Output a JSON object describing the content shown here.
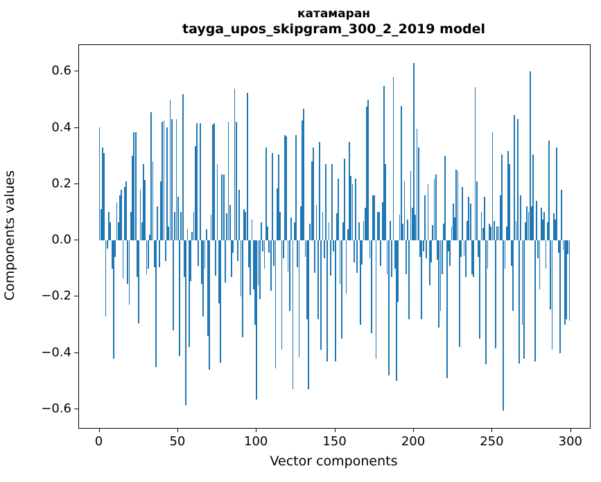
{
  "chart_data": {
    "type": "bar",
    "title_line1": "катамаран",
    "title_line2": "tayga_upos_skipgram_300_2_2019 model",
    "xlabel": "Vector components",
    "ylabel": "Components values",
    "bar_color": "#1f77b4",
    "background_color": "#ffffff",
    "spine_color": "#000000",
    "grid": false,
    "legend": false,
    "bar_width_data_units": 0.8,
    "xlim": [
      -13,
      312
    ],
    "ylim": [
      -0.667,
      0.694
    ],
    "x_ticks": [
      0,
      50,
      100,
      150,
      200,
      250,
      300
    ],
    "y_ticks": [
      {
        "value": 0.6,
        "label": "0.6"
      },
      {
        "value": 0.4,
        "label": "0.4"
      },
      {
        "value": 0.2,
        "label": "0.2"
      },
      {
        "value": 0.0,
        "label": "0.0"
      },
      {
        "value": -0.2,
        "label": "−0.2"
      },
      {
        "value": -0.4,
        "label": "−0.4"
      },
      {
        "value": -0.6,
        "label": "−0.6"
      }
    ],
    "x_start": 0,
    "values": [
      0.4,
      0.11,
      0.33,
      0.31,
      -0.27,
      -0.03,
      0.1,
      0.065,
      -0.1,
      -0.42,
      -0.06,
      0.135,
      0.065,
      0.16,
      0.18,
      -0.135,
      0.19,
      0.21,
      -0.155,
      -0.23,
      0.1,
      0.3,
      0.385,
      0.385,
      -0.13,
      -0.295,
      0.18,
      0.065,
      0.27,
      0.215,
      -0.12,
      -0.1,
      0.02,
      0.455,
      0.28,
      -0.095,
      -0.45,
      0.12,
      -0.095,
      0.21,
      0.42,
      0.425,
      -0.075,
      0.4,
      0.05,
      0.5,
      0.43,
      -0.32,
      0.1,
      0.43,
      0.155,
      -0.41,
      0.1,
      0.52,
      -0.13,
      -0.585,
      0.04,
      -0.38,
      -0.145,
      0.03,
      0.1,
      0.335,
      0.415,
      -0.09,
      0.415,
      -0.155,
      -0.27,
      -0.1,
      0.04,
      -0.34,
      -0.46,
      0.09,
      0.41,
      0.415,
      -0.125,
      0.27,
      -0.225,
      -0.435,
      0.235,
      0.235,
      -0.15,
      0.095,
      0.42,
      0.125,
      -0.13,
      -0.045,
      0.54,
      0.42,
      -0.075,
      0.18,
      -0.2,
      -0.345,
      0.11,
      0.1,
      0.525,
      -0.095,
      -0.195,
      0.075,
      -0.175,
      -0.3,
      -0.565,
      -0.16,
      -0.21,
      0.065,
      -0.04,
      -0.1,
      0.33,
      0.05,
      -0.045,
      -0.18,
      0.31,
      -0.09,
      -0.455,
      0.185,
      0.305,
      0.1,
      -0.39,
      -0.065,
      0.375,
      0.37,
      -0.11,
      -0.25,
      0.08,
      -0.53,
      0.065,
      0.375,
      -0.095,
      -0.415,
      0.12,
      0.425,
      0.468,
      -0.06,
      -0.28,
      -0.53,
      0.06,
      0.28,
      0.33,
      -0.115,
      0.125,
      -0.28,
      0.35,
      -0.39,
      0.1,
      -0.065,
      0.27,
      -0.43,
      0.065,
      -0.125,
      0.27,
      -0.04,
      -0.43,
      0.095,
      0.22,
      -0.155,
      -0.35,
      0.065,
      0.29,
      -0.19,
      0.04,
      0.35,
      0.23,
      0.2,
      -0.08,
      0.22,
      -0.115,
      0.065,
      -0.3,
      -0.085,
      0.07,
      0.115,
      0.475,
      0.5,
      -0.065,
      -0.33,
      0.16,
      0.16,
      -0.42,
      0.1,
      0.1,
      -0.09,
      0.135,
      0.55,
      0.27,
      -0.12,
      -0.48,
      0.07,
      -0.13,
      0.58,
      -0.1,
      -0.5,
      -0.22,
      0.09,
      0.477,
      0.06,
      0.21,
      -0.12,
      0.075,
      -0.28,
      0.245,
      0.115,
      0.63,
      0.09,
      0.395,
      0.33,
      -0.06,
      -0.28,
      -0.04,
      0.16,
      -0.065,
      0.2,
      -0.16,
      -0.08,
      0.055,
      0.22,
      0.235,
      -0.07,
      -0.31,
      -0.25,
      -0.12,
      0.06,
      0.3,
      -0.49,
      -0.04,
      -0.09,
      0.05,
      0.13,
      0.08,
      0.25,
      0.245,
      -0.38,
      -0.06,
      0.19,
      -0.055,
      -0.13,
      0.07,
      0.155,
      0.13,
      -0.12,
      -0.13,
      0.545,
      0.21,
      -0.06,
      -0.35,
      0.1,
      0.045,
      0.155,
      -0.44,
      -0.1,
      0.06,
      0.05,
      0.385,
      0.07,
      -0.385,
      0.05,
      0.05,
      0.16,
      0.305,
      -0.605,
      -0.1,
      0.05,
      0.317,
      0.27,
      -0.09,
      -0.25,
      0.445,
      0.07,
      0.43,
      -0.437,
      0.16,
      -0.3,
      -0.42,
      0.065,
      0.12,
      0.1,
      0.6,
      0.12,
      0.305,
      -0.43,
      0.14,
      -0.065,
      -0.175,
      0.115,
      0.075,
      0.1,
      -0.1,
      0.065,
      0.355,
      -0.245,
      -0.39,
      0.095,
      0.075,
      0.33,
      -0.045,
      -0.4,
      0.18,
      -0.035,
      -0.3,
      -0.28,
      -0.05,
      -0.285
    ]
  }
}
